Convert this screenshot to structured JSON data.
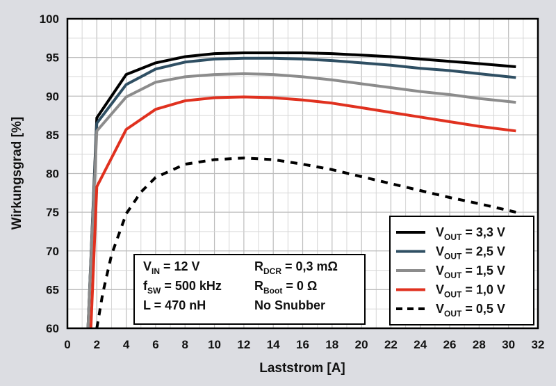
{
  "chart_data": {
    "type": "line",
    "xlabel": "Laststrom [A]",
    "ylabel": "Wirkungsgrad [%]",
    "xlim": [
      0,
      32
    ],
    "ylim": [
      60,
      100
    ],
    "x_ticks": [
      "0",
      "2",
      "4",
      "6",
      "8",
      "10",
      "12",
      "14",
      "16",
      "18",
      "20",
      "22",
      "24",
      "26",
      "28",
      "30",
      "32"
    ],
    "y_ticks": [
      "60",
      "65",
      "70",
      "75",
      "80",
      "85",
      "90",
      "95",
      "100"
    ],
    "grid": true,
    "legend_position": "bottom-right",
    "series": [
      {
        "name_main": "V",
        "name_sub": "OUT",
        "name_rest": " = 3,3 V",
        "color": "#000000",
        "dash": false,
        "x": [
          1.4,
          2,
          4,
          6,
          8,
          10,
          12,
          14,
          16,
          18,
          20,
          22,
          24,
          26,
          28,
          30.5
        ],
        "y": [
          60,
          87.2,
          92.8,
          94.3,
          95.1,
          95.5,
          95.6,
          95.6,
          95.6,
          95.5,
          95.3,
          95.1,
          94.8,
          94.5,
          94.2,
          93.8
        ]
      },
      {
        "name_main": "V",
        "name_sub": "OUT",
        "name_rest": " = 2,5 V",
        "color": "#2f4f63",
        "dash": false,
        "x": [
          1.4,
          2,
          4,
          6,
          8,
          10,
          12,
          14,
          16,
          18,
          20,
          22,
          24,
          26,
          28,
          30.5
        ],
        "y": [
          60,
          86.5,
          91.5,
          93.5,
          94.4,
          94.8,
          94.9,
          94.9,
          94.8,
          94.6,
          94.3,
          94.0,
          93.6,
          93.3,
          92.9,
          92.4
        ]
      },
      {
        "name_main": "V",
        "name_sub": "OUT",
        "name_rest": " = 1,5 V",
        "color": "#8c8c8c",
        "dash": false,
        "x": [
          1.4,
          2,
          4,
          6,
          8,
          10,
          12,
          14,
          16,
          18,
          20,
          22,
          24,
          26,
          28,
          30.5
        ],
        "y": [
          60,
          85.5,
          89.9,
          91.8,
          92.5,
          92.8,
          92.9,
          92.8,
          92.5,
          92.1,
          91.6,
          91.1,
          90.6,
          90.2,
          89.7,
          89.2
        ]
      },
      {
        "name_main": "V",
        "name_sub": "OUT",
        "name_rest": " = 1,0 V",
        "color": "#e0311f",
        "dash": false,
        "x": [
          1.6,
          2,
          4,
          6,
          8,
          10,
          12,
          14,
          16,
          18,
          20,
          22,
          24,
          26,
          28,
          30.5
        ],
        "y": [
          60,
          78.3,
          85.7,
          88.3,
          89.4,
          89.8,
          89.9,
          89.8,
          89.5,
          89.1,
          88.5,
          87.9,
          87.3,
          86.7,
          86.1,
          85.5
        ]
      },
      {
        "name_main": "V",
        "name_sub": "OUT",
        "name_rest": " = 0,5 V",
        "color": "#000000",
        "dash": true,
        "x": [
          2,
          2.4,
          3,
          4,
          5,
          6,
          8,
          10,
          12,
          14,
          16,
          18,
          20,
          22,
          24,
          26,
          28,
          30.5
        ],
        "y": [
          60,
          64.5,
          69.5,
          74.8,
          77.6,
          79.5,
          81.2,
          81.8,
          82.0,
          81.8,
          81.2,
          80.5,
          79.6,
          78.7,
          77.8,
          76.9,
          76.1,
          75.0
        ]
      }
    ],
    "info_box": [
      {
        "a_main": "V",
        "a_sub": "IN",
        "a_rest": " = 12 V",
        "b_main": "R",
        "b_sub": "DCR",
        "b_rest": " = 0,3 mΩ"
      },
      {
        "a_main": "f",
        "a_sub": "SW",
        "a_rest": " = 500 kHz",
        "b_main": "R",
        "b_sub": "Boot",
        "b_rest": " = 0 Ω"
      },
      {
        "a_main": "L = 470 nH",
        "a_sub": "",
        "a_rest": "",
        "b_main": "No Snubber",
        "b_sub": "",
        "b_rest": ""
      }
    ]
  }
}
